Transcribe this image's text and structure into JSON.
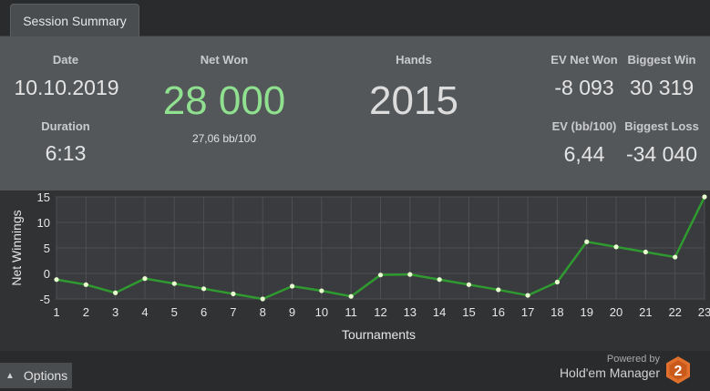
{
  "tab": {
    "label": "Session Summary"
  },
  "summary": {
    "date": {
      "label": "Date",
      "value": "10.10.2019"
    },
    "duration": {
      "label": "Duration",
      "value": "6:13"
    },
    "net_won": {
      "label": "Net Won",
      "value": "28 000",
      "sub": "27,06 bb/100"
    },
    "hands": {
      "label": "Hands",
      "value": "2015"
    },
    "ev_net_won": {
      "label": "EV Net Won",
      "value": "-8 093"
    },
    "biggest_win": {
      "label": "Biggest Win",
      "value": "30 319"
    },
    "ev_bb100": {
      "label": "EV (bb/100)",
      "value": "6,44"
    },
    "biggest_loss": {
      "label": "Biggest Loss",
      "value": "-34 040"
    }
  },
  "colors": {
    "net_won_value": "#8fe08f",
    "line": "#2f9a2f",
    "point": "#e8ffd0",
    "panel": "#54575a"
  },
  "chart_data": {
    "type": "line",
    "xlabel": "Tournaments",
    "ylabel": "Net Winnings",
    "x": [
      1,
      2,
      3,
      4,
      5,
      6,
      7,
      8,
      9,
      10,
      11,
      12,
      13,
      14,
      15,
      16,
      17,
      18,
      19,
      20,
      21,
      22,
      23
    ],
    "series": [
      {
        "values": [
          -1.2,
          -2.2,
          -3.8,
          -1.0,
          -2.0,
          -3.0,
          -4.0,
          -5.0,
          -2.5,
          -3.4,
          -4.5,
          -0.3,
          -0.2,
          -1.2,
          -2.2,
          -3.2,
          -4.3,
          -1.7,
          6.2,
          5.2,
          4.2,
          3.2,
          15.0
        ]
      }
    ],
    "xlim": [
      1,
      23
    ],
    "ylim": [
      -5,
      15
    ],
    "yticks": [
      -5,
      0,
      5,
      10,
      15
    ],
    "grid": true
  },
  "footer": {
    "options_label": "Options",
    "powered_line1": "Powered by",
    "powered_line2": "Hold'em Manager",
    "logo_text": "2"
  }
}
